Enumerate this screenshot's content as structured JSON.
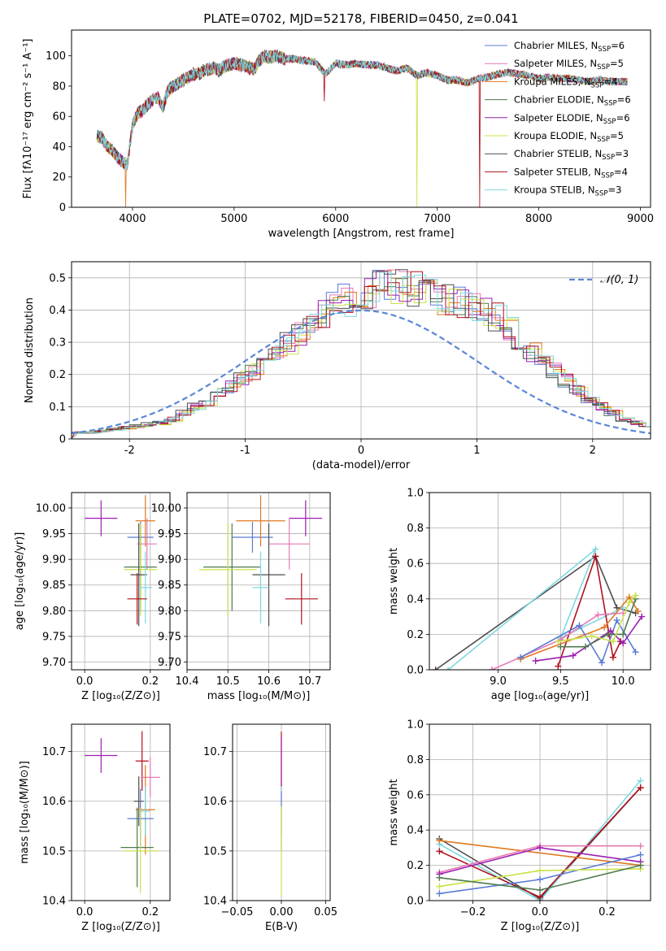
{
  "colors": {
    "chabrier_miles": "#5b7bd5",
    "salpeter_miles": "#e879b5",
    "kroupa_miles": "#e0781f",
    "chabrier_elodie": "#4f7a4f",
    "salpeter_elodie": "#9b1fb0",
    "kroupa_elodie": "#c9e24a",
    "chabrier_stelib": "#4d4d4d",
    "salpeter_stelib": "#b0101c",
    "kroupa_stelib": "#7fd8e0",
    "normal_curve": "#5b87d8"
  },
  "chart_data": [
    {
      "id": "spectrum",
      "type": "line",
      "title": "PLATE=0702, MJD=52178, FIBERID=0450, z=0.041",
      "xlabel": "wavelength [Angstrom, rest frame]",
      "ylabel": "Flux [fλ10⁻¹⁷ erg cm⁻² s⁻¹ A⁻¹]",
      "xlim": [
        3400,
        9100
      ],
      "ylim": [
        0,
        117
      ],
      "xticks": [
        4000,
        5000,
        6000,
        7000,
        8000,
        9000
      ],
      "yticks": [
        0,
        20,
        40,
        60,
        80,
        100
      ],
      "grid": false,
      "legend_position": "top-right",
      "legend": [
        {
          "key": "chabrier_miles",
          "text": "Chabrier MILES, N",
          "sub": "SSP",
          "tail": "=6"
        },
        {
          "key": "salpeter_miles",
          "text": "Salpeter MILES, N",
          "sub": "SSP",
          "tail": "=5"
        },
        {
          "key": "kroupa_miles",
          "text": "Kroupa MILES, N",
          "sub": "SSP",
          "tail": "=4"
        },
        {
          "key": "chabrier_elodie",
          "text": "Chabrier ELODIE, N",
          "sub": "SSP",
          "tail": "=6"
        },
        {
          "key": "salpeter_elodie",
          "text": "Salpeter ELODIE, N",
          "sub": "SSP",
          "tail": "=6"
        },
        {
          "key": "kroupa_elodie",
          "text": "Kroupa ELODIE, N",
          "sub": "SSP",
          "tail": "=5"
        },
        {
          "key": "chabrier_stelib",
          "text": "Chabrier STELIB, N",
          "sub": "SSP",
          "tail": "=3"
        },
        {
          "key": "salpeter_stelib",
          "text": "Salpeter STELIB, N",
          "sub": "SSP",
          "tail": "=4"
        },
        {
          "key": "kroupa_stelib",
          "text": "Kroupa STELIB, N",
          "sub": "SSP",
          "tail": "=3"
        }
      ],
      "continuum": [
        [
          3650,
          47
        ],
        [
          3700,
          46
        ],
        [
          3750,
          40
        ],
        [
          3800,
          38
        ],
        [
          3850,
          33
        ],
        [
          3900,
          30
        ],
        [
          3950,
          28
        ],
        [
          4000,
          54
        ],
        [
          4050,
          62
        ],
        [
          4100,
          64
        ],
        [
          4150,
          68
        ],
        [
          4200,
          71
        ],
        [
          4250,
          73
        ],
        [
          4300,
          66
        ],
        [
          4350,
          77
        ],
        [
          4400,
          80
        ],
        [
          4450,
          82
        ],
        [
          4500,
          84
        ],
        [
          4550,
          86
        ],
        [
          4600,
          88
        ],
        [
          4650,
          88
        ],
        [
          4700,
          90
        ],
        [
          4750,
          91
        ],
        [
          4800,
          92
        ],
        [
          4850,
          90
        ],
        [
          4900,
          93
        ],
        [
          4950,
          94
        ],
        [
          5000,
          95
        ],
        [
          5050,
          94
        ],
        [
          5100,
          94
        ],
        [
          5150,
          92
        ],
        [
          5200,
          91
        ],
        [
          5250,
          97
        ],
        [
          5300,
          100
        ],
        [
          5350,
          99
        ],
        [
          5400,
          100
        ],
        [
          5450,
          99
        ],
        [
          5500,
          98
        ],
        [
          5600,
          98
        ],
        [
          5700,
          97
        ],
        [
          5800,
          96
        ],
        [
          5900,
          88
        ],
        [
          6000,
          95
        ],
        [
          6100,
          94
        ],
        [
          6200,
          95
        ],
        [
          6300,
          94
        ],
        [
          6400,
          94
        ],
        [
          6500,
          92
        ],
        [
          6600,
          90
        ],
        [
          6700,
          92
        ],
        [
          6800,
          87
        ],
        [
          6900,
          89
        ],
        [
          7000,
          87
        ],
        [
          7100,
          84
        ],
        [
          7200,
          84
        ],
        [
          7300,
          82
        ],
        [
          7400,
          85
        ],
        [
          7500,
          86
        ],
        [
          7600,
          88
        ],
        [
          7700,
          89
        ],
        [
          7800,
          88
        ],
        [
          7900,
          87
        ],
        [
          8000,
          85
        ],
        [
          8100,
          86
        ],
        [
          8200,
          85
        ],
        [
          8300,
          85
        ],
        [
          8400,
          84
        ],
        [
          8500,
          83
        ],
        [
          8600,
          84
        ],
        [
          8700,
          83
        ],
        [
          8800,
          83
        ],
        [
          8870,
          83
        ]
      ],
      "dips": [
        {
          "x": 3930,
          "y": 0,
          "series": "kroupa_miles"
        },
        {
          "x": 5890,
          "y": 70,
          "series": "salpeter_stelib"
        },
        {
          "x": 6800,
          "y": 0,
          "series": "kroupa_elodie"
        },
        {
          "x": 7420,
          "y": 0,
          "series": "salpeter_stelib"
        }
      ]
    },
    {
      "id": "residual_histogram",
      "type": "area",
      "xlabel": "(data-model)/error",
      "ylabel": "Normed distribution",
      "xlim": [
        -2.5,
        2.5
      ],
      "ylim": [
        0,
        0.55
      ],
      "xticks": [
        -2,
        -1,
        0,
        1,
        2
      ],
      "yticks": [
        0.0,
        0.1,
        0.2,
        0.3,
        0.4,
        0.5
      ],
      "grid": true,
      "legend_position": "top-right",
      "legend": [
        {
          "key": "normal_curve",
          "text": "𝒩(0, 1)"
        }
      ],
      "bin_width": 0.1,
      "bin_start": -2.5,
      "base_density": [
        0.02,
        0.02,
        0.025,
        0.03,
        0.035,
        0.04,
        0.045,
        0.05,
        0.06,
        0.08,
        0.1,
        0.11,
        0.14,
        0.16,
        0.19,
        0.21,
        0.24,
        0.27,
        0.3,
        0.33,
        0.36,
        0.39,
        0.41,
        0.43,
        0.45,
        0.46,
        0.47,
        0.47,
        0.48,
        0.47,
        0.46,
        0.44,
        0.43,
        0.42,
        0.41,
        0.4,
        0.38,
        0.35,
        0.31,
        0.27,
        0.24,
        0.21,
        0.18,
        0.15,
        0.12,
        0.1,
        0.08,
        0.06,
        0.05,
        0.04
      ]
    },
    {
      "id": "z_vs_age",
      "type": "scatter",
      "xlabel": "Z [log₁₀(Z/Z⊙)]",
      "ylabel": "age  [log₁₀(age/yr)]",
      "xlim": [
        -0.04,
        0.26
      ],
      "ylim": [
        9.685,
        10.03
      ],
      "xticks": [
        "0.0",
        "0.2"
      ],
      "yticks": [
        "9.70",
        "9.75",
        "9.80",
        "9.85",
        "9.90",
        "9.95",
        "10.00"
      ],
      "grid": true,
      "points": [
        {
          "key": "salpeter_elodie",
          "x": 0.05,
          "xerr": 0.05,
          "y": 9.98,
          "yerr": 0.035
        },
        {
          "key": "chabrier_miles",
          "x": 0.17,
          "xerr": 0.04,
          "y": 9.943,
          "yerr": 0.03
        },
        {
          "key": "kroupa_miles",
          "x": 0.185,
          "xerr": 0.03,
          "y": 9.975,
          "yerr": 0.05
        },
        {
          "key": "salpeter_miles",
          "x": 0.19,
          "xerr": 0.03,
          "y": 9.93,
          "yerr": 0.05
        },
        {
          "key": "chabrier_elodie",
          "x": 0.17,
          "xerr": 0.05,
          "y": 9.885,
          "yerr": 0.085
        },
        {
          "key": "kroupa_elodie",
          "x": 0.17,
          "xerr": 0.05,
          "y": 9.88,
          "yerr": 0.09
        },
        {
          "key": "chabrier_stelib",
          "x": 0.165,
          "xerr": 0.025,
          "y": 9.87,
          "yerr": 0.1
        },
        {
          "key": "kroupa_stelib",
          "x": 0.185,
          "xerr": 0.02,
          "y": 9.845,
          "yerr": 0.07
        },
        {
          "key": "salpeter_stelib",
          "x": 0.16,
          "xerr": 0.03,
          "y": 9.823,
          "yerr": 0.05
        }
      ]
    },
    {
      "id": "mass_vs_age",
      "type": "scatter",
      "xlabel": "mass [log₁₀(M/M⊙)]",
      "ylabel": "",
      "xlim": [
        10.4,
        10.75
      ],
      "ylim": [
        9.685,
        10.03
      ],
      "xticks": [
        "10.4",
        "10.5",
        "10.6",
        "10.7"
      ],
      "yticks": [
        "9.70",
        "9.75",
        "9.80",
        "9.85",
        "9.90",
        "9.95",
        "10.00"
      ],
      "grid": true,
      "points": [
        {
          "key": "salpeter_elodie",
          "x": 10.69,
          "xerr": 0.04,
          "y": 9.98,
          "yerr": 0.035
        },
        {
          "key": "chabrier_miles",
          "x": 10.56,
          "xerr": 0.05,
          "y": 9.943,
          "yerr": 0.03
        },
        {
          "key": "kroupa_miles",
          "x": 10.58,
          "xerr": 0.06,
          "y": 9.975,
          "yerr": 0.05
        },
        {
          "key": "salpeter_miles",
          "x": 10.65,
          "xerr": 0.05,
          "y": 9.93,
          "yerr": 0.05
        },
        {
          "key": "chabrier_elodie",
          "x": 10.51,
          "xerr": 0.07,
          "y": 9.885,
          "yerr": 0.085
        },
        {
          "key": "kroupa_elodie",
          "x": 10.5,
          "xerr": 0.07,
          "y": 9.88,
          "yerr": 0.09
        },
        {
          "key": "chabrier_stelib",
          "x": 10.6,
          "xerr": 0.04,
          "y": 9.87,
          "yerr": 0.1
        },
        {
          "key": "kroupa_stelib",
          "x": 10.58,
          "xerr": 0.02,
          "y": 9.845,
          "yerr": 0.07
        },
        {
          "key": "salpeter_stelib",
          "x": 10.68,
          "xerr": 0.04,
          "y": 9.823,
          "yerr": 0.05
        }
      ]
    },
    {
      "id": "age_vs_weight",
      "type": "line",
      "xlabel": "age  [log₁₀(age/yr)]",
      "ylabel": "mass weight",
      "xlim": [
        8.45,
        10.22
      ],
      "ylim": [
        0,
        1
      ],
      "xticks": [
        "9.0",
        "9.5",
        "10.0"
      ],
      "yticks": [
        "0.0",
        "0.2",
        "0.4",
        "0.6",
        "0.8",
        "1.0"
      ],
      "grid": true,
      "series": [
        {
          "key": "chabrier_stelib",
          "x": [
            8.5,
            9.78,
            9.95,
            10.1
          ],
          "y": [
            0.0,
            0.64,
            0.35,
            0.32
          ]
        },
        {
          "key": "kroupa_stelib",
          "x": [
            8.6,
            9.78,
            9.5,
            10.0
          ],
          "y": [
            0.0,
            0.68,
            0.18,
            0.35
          ]
        },
        {
          "key": "salpeter_stelib",
          "x": [
            9.48,
            9.78,
            9.92,
            9.98
          ],
          "y": [
            0.02,
            0.64,
            0.07,
            0.16
          ]
        },
        {
          "key": "salpeter_miles",
          "x": [
            8.95,
            9.5,
            9.8,
            10.0
          ],
          "y": [
            0.0,
            0.17,
            0.31,
            0.32
          ]
        },
        {
          "key": "kroupa_miles",
          "x": [
            9.18,
            9.85,
            10.05,
            10.12
          ],
          "y": [
            0.06,
            0.24,
            0.41,
            0.33
          ]
        },
        {
          "key": "chabrier_miles",
          "x": [
            9.18,
            9.65,
            9.83,
            9.95,
            10.1
          ],
          "y": [
            0.07,
            0.25,
            0.04,
            0.28,
            0.1
          ]
        },
        {
          "key": "salpeter_elodie",
          "x": [
            9.3,
            9.6,
            9.9,
            10.0,
            10.15
          ],
          "y": [
            0.05,
            0.08,
            0.22,
            0.15,
            0.3
          ]
        },
        {
          "key": "chabrier_elodie",
          "x": [
            9.5,
            9.7,
            9.88,
            10.0,
            10.1
          ],
          "y": [
            0.13,
            0.13,
            0.2,
            0.2,
            0.4
          ]
        },
        {
          "key": "kroupa_elodie",
          "x": [
            9.48,
            9.75,
            9.92,
            10.05,
            10.1
          ],
          "y": [
            0.16,
            0.19,
            0.16,
            0.38,
            0.42
          ]
        }
      ]
    },
    {
      "id": "z_vs_mass",
      "type": "scatter",
      "xlabel": "Z [log₁₀(Z/Z⊙)]",
      "ylabel": "mass [log₁₀(M/M⊙)]",
      "xlim": [
        -0.04,
        0.26
      ],
      "ylim": [
        10.4,
        10.755
      ],
      "xticks": [
        "0.0",
        "0.2"
      ],
      "yticks": [
        "10.4",
        "10.5",
        "10.6",
        "10.7"
      ],
      "grid": true,
      "points": [
        {
          "key": "salpeter_elodie",
          "x": 0.05,
          "xerr": 0.05,
          "y": 10.692,
          "yerr": 0.035
        },
        {
          "key": "salpeter_stelib",
          "x": 0.175,
          "xerr": 0.02,
          "y": 10.681,
          "yerr": 0.06
        },
        {
          "key": "salpeter_miles",
          "x": 0.2,
          "xerr": 0.03,
          "y": 10.648,
          "yerr": 0.04
        },
        {
          "key": "chabrier_stelib",
          "x": 0.165,
          "xerr": 0.015,
          "y": 10.6,
          "yerr": 0.05
        },
        {
          "key": "kroupa_miles",
          "x": 0.185,
          "xerr": 0.03,
          "y": 10.583,
          "yerr": 0.09
        },
        {
          "key": "kroupa_stelib",
          "x": 0.185,
          "xerr": 0.015,
          "y": 10.58,
          "yerr": 0.05
        },
        {
          "key": "chabrier_miles",
          "x": 0.17,
          "xerr": 0.04,
          "y": 10.565,
          "yerr": 0.06
        },
        {
          "key": "chabrier_elodie",
          "x": 0.16,
          "xerr": 0.05,
          "y": 10.507,
          "yerr": 0.08
        },
        {
          "key": "kroupa_elodie",
          "x": 0.17,
          "xerr": 0.05,
          "y": 10.5,
          "yerr": 0.085
        }
      ]
    },
    {
      "id": "ebv_vs_mass",
      "type": "scatter",
      "xlabel": "E(B-V)",
      "ylabel": "",
      "xlim": [
        -0.055,
        0.055
      ],
      "ylim": [
        10.4,
        10.755
      ],
      "xticks": [
        "−0.05",
        "0.00",
        "0.05"
      ],
      "yticks": [
        "10.4",
        "10.5",
        "10.6",
        "10.7"
      ],
      "grid": true,
      "points": [
        {
          "key": "salpeter_stelib",
          "x": 0.0,
          "y": 10.68,
          "yerr": 0.06
        },
        {
          "key": "salpeter_elodie",
          "x": 0.0,
          "y": 10.68,
          "yerr": 0.05
        },
        {
          "key": "kroupa_stelib",
          "x": 0.0,
          "y": 10.58,
          "yerr": 0.05
        },
        {
          "key": "chabrier_miles",
          "x": 0.0,
          "y": 10.56,
          "yerr": 0.06
        },
        {
          "key": "kroupa_elodie",
          "x": 0.0,
          "y": 10.5,
          "yerr": 0.09
        }
      ]
    },
    {
      "id": "z_vs_weight",
      "type": "line",
      "xlabel": "Z [log₁₀(Z/Z⊙)]",
      "ylabel": "mass weight",
      "xlim": [
        -0.33,
        0.33
      ],
      "ylim": [
        0,
        1
      ],
      "xticks": [
        "−0.2",
        "0.0",
        "0.2"
      ],
      "yticks": [
        "0.0",
        "0.2",
        "0.4",
        "0.6",
        "0.8",
        "1.0"
      ],
      "grid": true,
      "series": [
        {
          "key": "chabrier_stelib",
          "x": [
            -0.3,
            0.0,
            0.3
          ],
          "y": [
            0.35,
            0.01,
            0.64
          ]
        },
        {
          "key": "kroupa_stelib",
          "x": [
            -0.3,
            0.0,
            0.3
          ],
          "y": [
            0.32,
            0.0,
            0.68
          ]
        },
        {
          "key": "salpeter_stelib",
          "x": [
            -0.3,
            0.0,
            0.3
          ],
          "y": [
            0.28,
            0.02,
            0.64
          ]
        },
        {
          "key": "kroupa_miles",
          "x": [
            -0.3,
            0.3
          ],
          "y": [
            0.34,
            0.2
          ]
        },
        {
          "key": "salpeter_miles",
          "x": [
            -0.3,
            0.0,
            0.3
          ],
          "y": [
            0.16,
            0.31,
            0.31
          ]
        },
        {
          "key": "salpeter_elodie",
          "x": [
            -0.3,
            0.0,
            0.3
          ],
          "y": [
            0.15,
            0.3,
            0.22
          ]
        },
        {
          "key": "chabrier_miles",
          "x": [
            -0.3,
            0.0,
            0.3
          ],
          "y": [
            0.04,
            0.12,
            0.26
          ]
        },
        {
          "key": "kroupa_elodie",
          "x": [
            -0.3,
            0.0,
            0.3
          ],
          "y": [
            0.08,
            0.17,
            0.18
          ]
        },
        {
          "key": "chabrier_elodie",
          "x": [
            -0.3,
            0.0,
            0.3
          ],
          "y": [
            0.13,
            0.06,
            0.2
          ]
        }
      ]
    }
  ]
}
